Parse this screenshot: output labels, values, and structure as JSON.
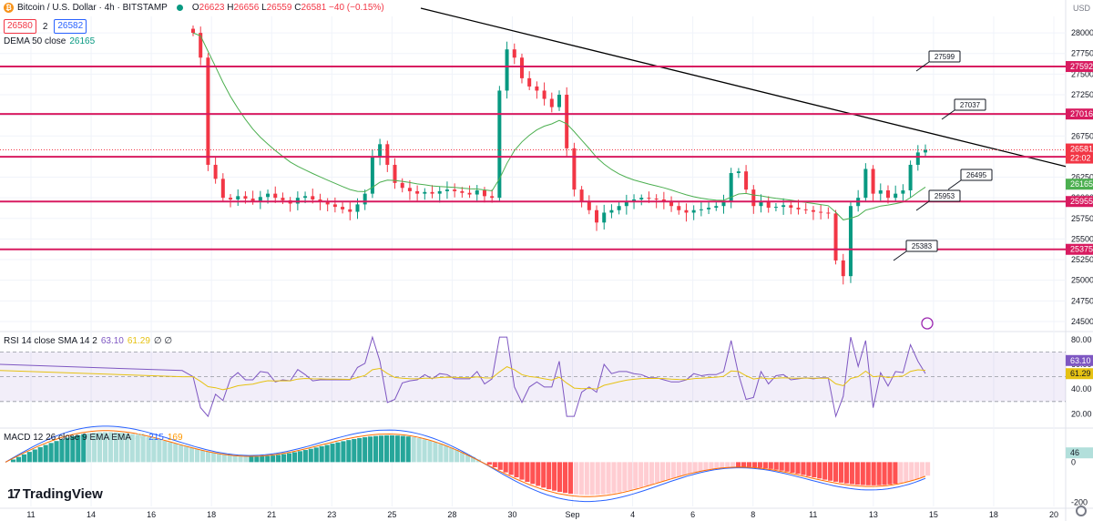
{
  "header": {
    "symbol": "Bitcoin / U.S. Dollar · 4h · BITSTAMP",
    "ohlc": {
      "o_label": "O",
      "o": "26623",
      "h_label": "H",
      "h": "26656",
      "l_label": "L",
      "l": "26559",
      "c_label": "C",
      "c": "26581",
      "change": "−40 (−0.15%)"
    },
    "bid": "26580",
    "spread": "2",
    "ask": "26582",
    "dema_label": "DEMA 50 close",
    "dema_value": "26165",
    "rsi_label": "RSI 14 close SMA 14 2",
    "rsi_value": "63.10",
    "rsi_sma_value": "61.29",
    "rsi_extra": "∅ ∅",
    "macd_label": "MACD 12 26 close 9 EMA EMA",
    "macd_hist": "46",
    "macd_line": "215",
    "macd_signal": "169"
  },
  "brand": "TradingView",
  "colors": {
    "up": "#089981",
    "down": "#f23645",
    "level": "#d81b60",
    "dema": "#4caf50",
    "trend": "#000000",
    "rsi": "#7e57c2",
    "rsi_sma": "#e6c213",
    "macd": "#2962ff",
    "signal": "#ff6d00"
  },
  "chart_data": [
    {
      "type": "candlestick",
      "title": "Bitcoin / U.S. Dollar · 4h · BITSTAMP",
      "ylim": [
        24400,
        28200
      ],
      "y_ticks": [
        "28000",
        "27750",
        "27500",
        "27250",
        "27000",
        "26750",
        "26500",
        "26250",
        "26000",
        "25750",
        "25500",
        "25250",
        "25000",
        "24750",
        "24500"
      ],
      "x_ticks": [
        "11",
        "14",
        "16",
        "18",
        "21",
        "23",
        "25",
        "28",
        "30",
        "Sep",
        "4",
        "6",
        "8",
        "11",
        "13",
        "15",
        "18",
        "20"
      ],
      "close_series": [
        28000,
        27700,
        26400,
        26230,
        26000,
        25980,
        26020,
        25990,
        25960,
        26010,
        26050,
        26000,
        25970,
        25930,
        26000,
        26020,
        25980,
        25950,
        25920,
        25890,
        25860,
        25830,
        25920,
        26050,
        26500,
        26650,
        26400,
        26180,
        26120,
        26080,
        26050,
        26070,
        26050,
        26080,
        26100,
        26080,
        26060,
        26040,
        26090,
        26020,
        26000,
        27300,
        27800,
        27700,
        27450,
        27350,
        27300,
        27200,
        27100,
        27250,
        26600,
        26100,
        25950,
        25850,
        25700,
        25820,
        25850,
        25900,
        25950,
        25980,
        26000,
        25990,
        25980,
        25950,
        25900,
        25850,
        25820,
        25850,
        25860,
        25880,
        25900,
        25950,
        26300,
        26320,
        26100,
        25900,
        25950,
        25880,
        25890,
        25910,
        25880,
        25860,
        25850,
        25830,
        25820,
        25810,
        25240,
        25050,
        25900,
        26000,
        26350,
        26050,
        26090,
        26000,
        26050,
        26090,
        26400,
        26550,
        26581
      ],
      "levels": [
        {
          "price": 27592,
          "label": "27592"
        },
        {
          "price": 27016,
          "label": "27016"
        },
        {
          "price": 26497,
          "label": "26497"
        },
        {
          "price": 25955,
          "label": "25955"
        },
        {
          "price": 25375,
          "label": "25375"
        }
      ],
      "callouts": [
        "27599",
        "27037",
        "26495",
        "25953",
        "25383"
      ],
      "price_badges": [
        {
          "label": "26581",
          "sub": "22:02",
          "color": "#f23645"
        },
        {
          "label": "26165",
          "color": "#4caf50"
        }
      ]
    },
    {
      "type": "line",
      "title": "RSI 14 close SMA 14 2",
      "ylim": [
        10,
        85
      ],
      "y_ticks": [
        "80.00",
        "60.00",
        "40.00",
        "20.00"
      ],
      "band": [
        30,
        70
      ],
      "series": [
        {
          "name": "RSI",
          "last": 63.1
        },
        {
          "name": "SMA",
          "last": 61.29
        }
      ]
    },
    {
      "type": "bar",
      "title": "MACD 12 26 close 9 EMA EMA",
      "ylim": [
        -220,
        160
      ],
      "y_ticks": [
        "0",
        "-200"
      ],
      "series": [
        {
          "name": "Histogram",
          "last": 46
        },
        {
          "name": "MACD",
          "last": 215
        },
        {
          "name": "Signal",
          "last": 169
        }
      ]
    }
  ]
}
